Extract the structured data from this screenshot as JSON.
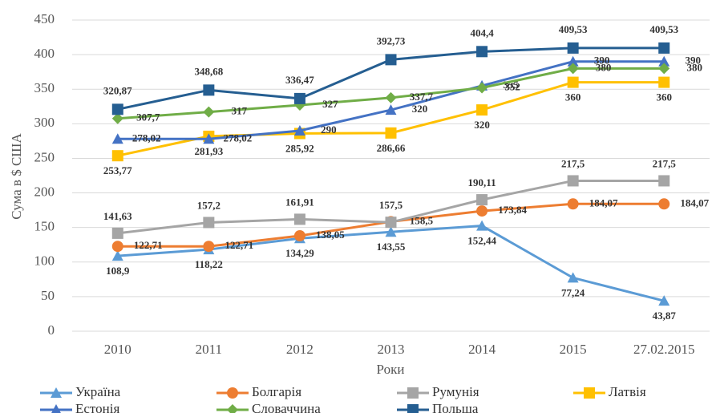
{
  "chart_data": {
    "type": "line",
    "y_label": "Сума в $ США",
    "x_label": "Роки",
    "categories": [
      "2010",
      "2011",
      "2012",
      "2013",
      "2014",
      "2015",
      "27.02.2015"
    ],
    "ylim": [
      0,
      450
    ],
    "yticks": [
      0,
      50,
      100,
      150,
      200,
      250,
      300,
      350,
      400,
      450
    ],
    "grid": true,
    "legend": "bottom",
    "series": [
      {
        "name": "Україна",
        "color": "#5b9bd5",
        "marker": "triangle",
        "values": [
          108.9,
          118.22,
          134.29,
          143.55,
          152.44,
          77.24,
          43.87
        ],
        "value_labels": [
          "108,9",
          "118,22",
          "134,29",
          "143,55",
          "152,44",
          "77,24",
          "43,87"
        ]
      },
      {
        "name": "Болгарія",
        "color": "#ed7d31",
        "marker": "circle",
        "values": [
          122.71,
          122.71,
          138.05,
          158.5,
          173.84,
          184.07,
          184.07
        ],
        "value_labels": [
          "122,71",
          "122,71",
          "138,05",
          "158,5",
          "173,84",
          "184,07",
          "184,07"
        ]
      },
      {
        "name": "Румунія",
        "color": "#a5a5a5",
        "marker": "square",
        "values": [
          141.63,
          157.2,
          161.91,
          157.5,
          190.11,
          217.5,
          217.5
        ],
        "value_labels": [
          "141,63",
          "157,2",
          "161,91",
          "157,5",
          "190,11",
          "217,5",
          "217,5"
        ]
      },
      {
        "name": "Латвія",
        "color": "#ffc000",
        "marker": "square",
        "values": [
          253.77,
          281.93,
          285.92,
          286.66,
          320,
          360,
          360
        ],
        "value_labels": [
          "253,77",
          "281,93",
          "285,92",
          "286,66",
          "320",
          "360",
          "360"
        ]
      },
      {
        "name": "Естонія",
        "color": "#4472c4",
        "marker": "triangle",
        "values": [
          278.02,
          278.02,
          290,
          320,
          355,
          390,
          390
        ],
        "value_labels": [
          "278,02",
          "278,02",
          "290",
          "320",
          "355",
          "390",
          "390"
        ]
      },
      {
        "name": "Словаччина",
        "color": "#70ad47",
        "marker": "diamond",
        "values": [
          307.7,
          317,
          327,
          337.7,
          352,
          380,
          380
        ],
        "value_labels": [
          "307,7",
          "317",
          "327",
          "337,7",
          "352",
          "380",
          "380"
        ]
      },
      {
        "name": "Польща",
        "color": "#255e91",
        "marker": "square",
        "values": [
          320.87,
          348.68,
          336.47,
          392.73,
          404.4,
          409.53,
          409.53
        ],
        "value_labels": [
          "320,87",
          "348,68",
          "336,47",
          "392,73",
          "404,4",
          "409,53",
          "409,53"
        ]
      }
    ]
  }
}
